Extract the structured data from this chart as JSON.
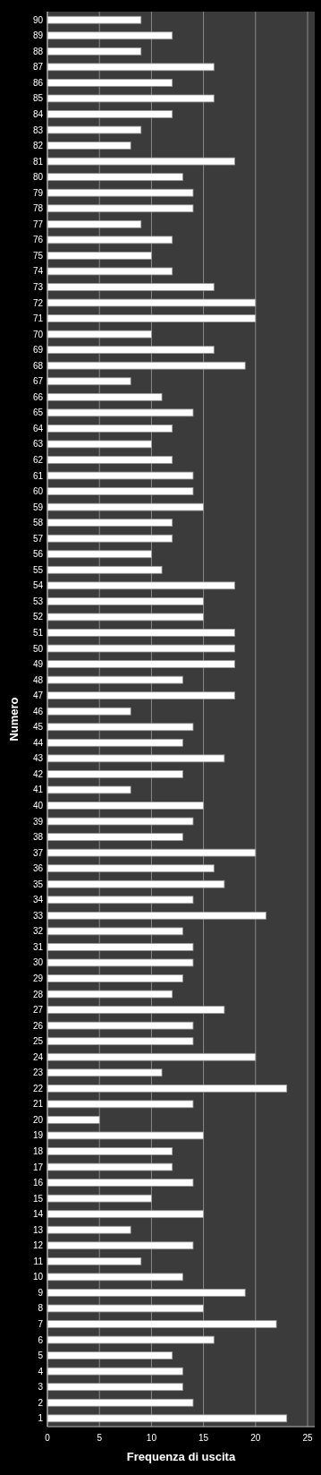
{
  "chart_data": {
    "type": "bar",
    "orientation": "horizontal",
    "xlabel": "Frequenza di uscita",
    "ylabel": "Numero",
    "categories": [
      "90",
      "89",
      "88",
      "87",
      "86",
      "85",
      "84",
      "83",
      "82",
      "81",
      "80",
      "79",
      "78",
      "77",
      "76",
      "75",
      "74",
      "73",
      "72",
      "71",
      "70",
      "69",
      "68",
      "67",
      "66",
      "65",
      "64",
      "63",
      "62",
      "61",
      "60",
      "59",
      "58",
      "57",
      "56",
      "55",
      "54",
      "53",
      "52",
      "51",
      "50",
      "49",
      "48",
      "47",
      "46",
      "45",
      "44",
      "43",
      "42",
      "41",
      "40",
      "39",
      "38",
      "37",
      "36",
      "35",
      "34",
      "33",
      "32",
      "31",
      "30",
      "29",
      "28",
      "27",
      "26",
      "25",
      "24",
      "23",
      "22",
      "21",
      "20",
      "19",
      "18",
      "17",
      "16",
      "15",
      "14",
      "13",
      "12",
      "11",
      "10",
      "9",
      "8",
      "7",
      "6",
      "5",
      "4",
      "3",
      "2",
      "1"
    ],
    "values": [
      9,
      12,
      9,
      16,
      12,
      16,
      12,
      9,
      8,
      18,
      13,
      14,
      14,
      9,
      12,
      10,
      12,
      16,
      20,
      20,
      10,
      16,
      19,
      8,
      11,
      14,
      12,
      10,
      12,
      14,
      14,
      15,
      12,
      12,
      10,
      11,
      18,
      15,
      15,
      18,
      18,
      18,
      13,
      18,
      8,
      14,
      13,
      17,
      13,
      8,
      15,
      14,
      13,
      20,
      16,
      17,
      14,
      21,
      13,
      14,
      14,
      13,
      12,
      17,
      14,
      14,
      20,
      11,
      23,
      14,
      5,
      15,
      12,
      12,
      14,
      10,
      15,
      8,
      14,
      9,
      13,
      19,
      15,
      22,
      16,
      12,
      13,
      13,
      14,
      23
    ],
    "color": "#ffffff",
    "xlim": [
      0,
      25
    ],
    "xticks": [
      0,
      5,
      10,
      15,
      20,
      25
    ],
    "grid": "x"
  }
}
